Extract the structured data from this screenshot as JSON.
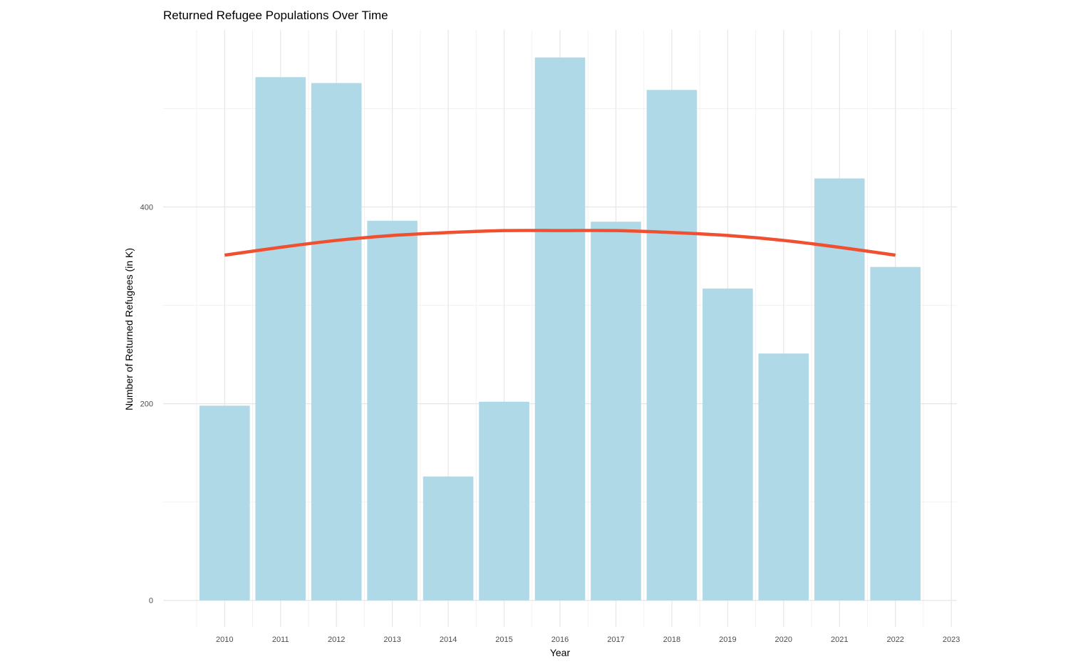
{
  "chart_data": {
    "type": "bar",
    "title": "Returned Refugee Populations Over Time",
    "xlabel": "Year",
    "ylabel": "Number of Returned Refugees (in K)",
    "categories": [
      "2010",
      "2011",
      "2012",
      "2013",
      "2014",
      "2015",
      "2016",
      "2017",
      "2018",
      "2019",
      "2020",
      "2021",
      "2022"
    ],
    "values": [
      198,
      532,
      526,
      386,
      126,
      202,
      552,
      385,
      519,
      317,
      251,
      429,
      339
    ],
    "x_ticks": [
      "2010",
      "2011",
      "2012",
      "2013",
      "2014",
      "2015",
      "2016",
      "2017",
      "2018",
      "2019",
      "2020",
      "2021",
      "2022",
      "2023"
    ],
    "y_ticks": [
      0,
      200,
      400
    ],
    "ylim": [
      -27,
      580
    ],
    "xlim": [
      2008.9,
      2023.1
    ],
    "grid": true,
    "trend_line": {
      "type": "smooth",
      "x": [
        2010,
        2011,
        2012,
        2013,
        2014,
        2015,
        2016,
        2017,
        2018,
        2019,
        2020,
        2021,
        2022
      ],
      "y": [
        351,
        359,
        366,
        371,
        374,
        376,
        376,
        376,
        374,
        371,
        366,
        359,
        351
      ]
    },
    "colors": {
      "bar": "#add8e6",
      "trend": "#f05030",
      "grid_major": "#e6e6e6",
      "grid_minor": "#f2f2f2"
    }
  }
}
